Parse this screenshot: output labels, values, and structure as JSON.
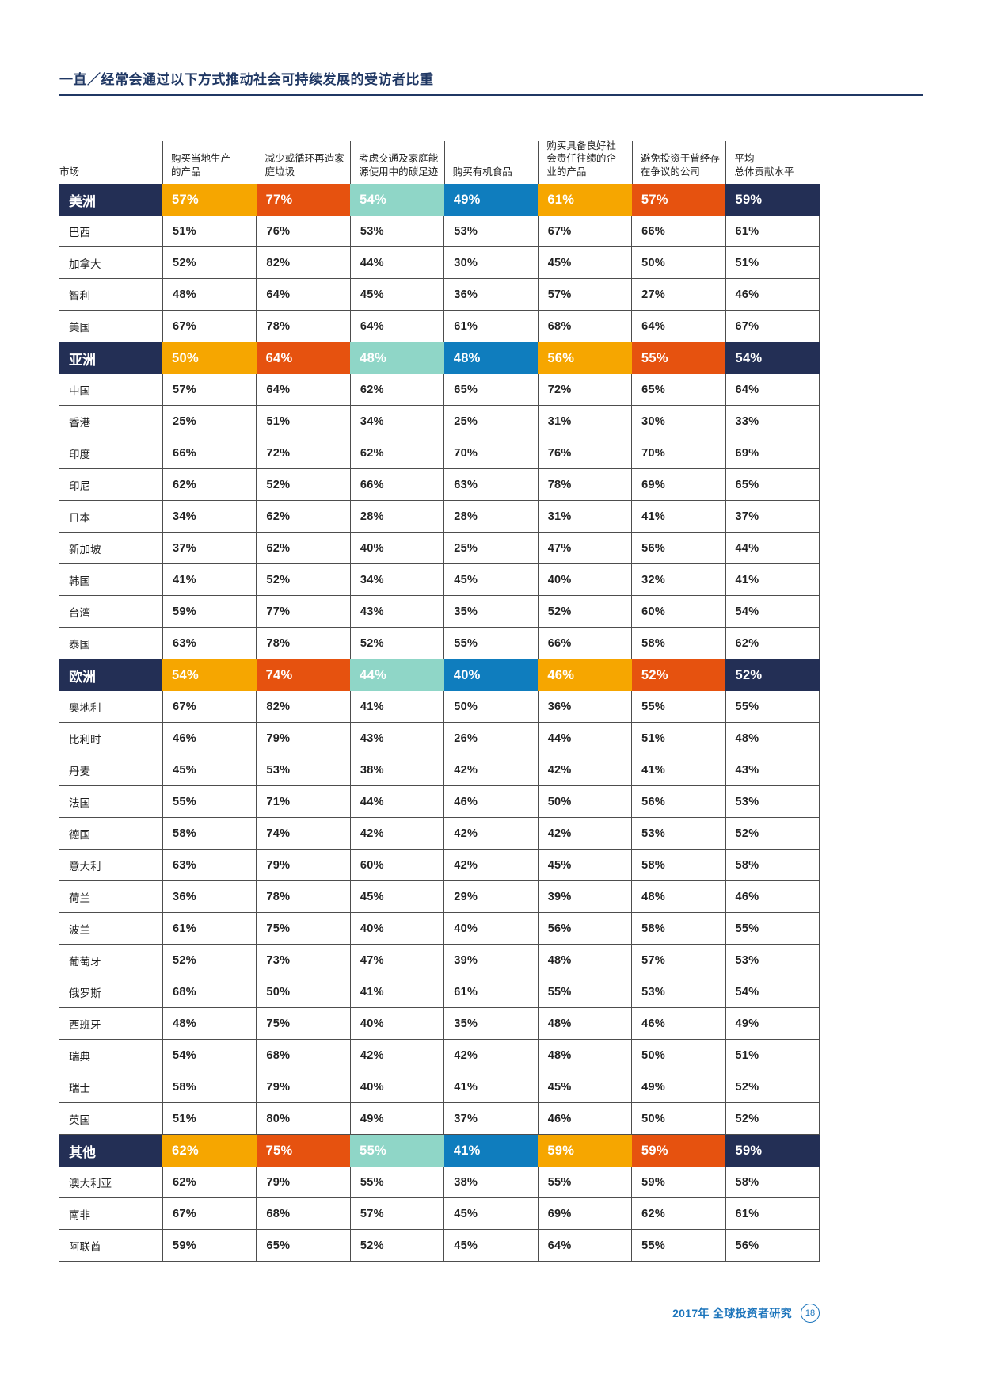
{
  "page": {
    "title": "一直／经常会通过以下方式推动社会可持续发展的受访者比重",
    "footer": {
      "text": "2017年 全球投资者研究",
      "page_number": "18"
    }
  },
  "colors": {
    "navy": "#232f55",
    "amber": "#f6a600",
    "orange": "#e6520f",
    "teal": "#8fd6c7",
    "blue": "#0f7dbe",
    "footer_blue": "#1c75bc"
  },
  "table": {
    "columns": [
      "市场",
      "购买当地生产\n的产品",
      "减少或循环再造家\n庭垃圾",
      "考虑交通及家庭能\n源使用中的碳足迹",
      "购买有机食品",
      "购买具备良好社\n会责任往绩的企\n业的产品",
      "避免投资于曾经存\n在争议的公司",
      "平均\n总体贡献水平"
    ],
    "value_colors": [
      "amber",
      "orange",
      "teal",
      "blue",
      "amber",
      "orange",
      "navy"
    ],
    "rows": [
      {
        "type": "region",
        "name": "美洲",
        "values": [
          "57%",
          "77%",
          "54%",
          "49%",
          "61%",
          "57%",
          "59%"
        ]
      },
      {
        "type": "country",
        "name": "巴西",
        "values": [
          "51%",
          "76%",
          "53%",
          "53%",
          "67%",
          "66%",
          "61%"
        ]
      },
      {
        "type": "country",
        "name": "加拿大",
        "values": [
          "52%",
          "82%",
          "44%",
          "30%",
          "45%",
          "50%",
          "51%"
        ]
      },
      {
        "type": "country",
        "name": "智利",
        "values": [
          "48%",
          "64%",
          "45%",
          "36%",
          "57%",
          "27%",
          "46%"
        ]
      },
      {
        "type": "country",
        "name": "美国",
        "values": [
          "67%",
          "78%",
          "64%",
          "61%",
          "68%",
          "64%",
          "67%"
        ]
      },
      {
        "type": "region",
        "name": "亚洲",
        "values": [
          "50%",
          "64%",
          "48%",
          "48%",
          "56%",
          "55%",
          "54%"
        ]
      },
      {
        "type": "country",
        "name": "中国",
        "values": [
          "57%",
          "64%",
          "62%",
          "65%",
          "72%",
          "65%",
          "64%"
        ]
      },
      {
        "type": "country",
        "name": "香港",
        "values": [
          "25%",
          "51%",
          "34%",
          "25%",
          "31%",
          "30%",
          "33%"
        ]
      },
      {
        "type": "country",
        "name": "印度",
        "values": [
          "66%",
          "72%",
          "62%",
          "70%",
          "76%",
          "70%",
          "69%"
        ]
      },
      {
        "type": "country",
        "name": "印尼",
        "values": [
          "62%",
          "52%",
          "66%",
          "63%",
          "78%",
          "69%",
          "65%"
        ]
      },
      {
        "type": "country",
        "name": "日本",
        "values": [
          "34%",
          "62%",
          "28%",
          "28%",
          "31%",
          "41%",
          "37%"
        ]
      },
      {
        "type": "country",
        "name": "新加坡",
        "values": [
          "37%",
          "62%",
          "40%",
          "25%",
          "47%",
          "56%",
          "44%"
        ]
      },
      {
        "type": "country",
        "name": "韩国",
        "values": [
          "41%",
          "52%",
          "34%",
          "45%",
          "40%",
          "32%",
          "41%"
        ]
      },
      {
        "type": "country",
        "name": "台湾",
        "values": [
          "59%",
          "77%",
          "43%",
          "35%",
          "52%",
          "60%",
          "54%"
        ]
      },
      {
        "type": "country",
        "name": "泰国",
        "values": [
          "63%",
          "78%",
          "52%",
          "55%",
          "66%",
          "58%",
          "62%"
        ]
      },
      {
        "type": "region",
        "name": "欧洲",
        "values": [
          "54%",
          "74%",
          "44%",
          "40%",
          "46%",
          "52%",
          "52%"
        ]
      },
      {
        "type": "country",
        "name": "奥地利",
        "values": [
          "67%",
          "82%",
          "41%",
          "50%",
          "36%",
          "55%",
          "55%"
        ]
      },
      {
        "type": "country",
        "name": "比利时",
        "values": [
          "46%",
          "79%",
          "43%",
          "26%",
          "44%",
          "51%",
          "48%"
        ]
      },
      {
        "type": "country",
        "name": "丹麦",
        "values": [
          "45%",
          "53%",
          "38%",
          "42%",
          "42%",
          "41%",
          "43%"
        ]
      },
      {
        "type": "country",
        "name": "法国",
        "values": [
          "55%",
          "71%",
          "44%",
          "46%",
          "50%",
          "56%",
          "53%"
        ]
      },
      {
        "type": "country",
        "name": "德国",
        "values": [
          "58%",
          "74%",
          "42%",
          "42%",
          "42%",
          "53%",
          "52%"
        ]
      },
      {
        "type": "country",
        "name": "意大利",
        "values": [
          "63%",
          "79%",
          "60%",
          "42%",
          "45%",
          "58%",
          "58%"
        ]
      },
      {
        "type": "country",
        "name": "荷兰",
        "values": [
          "36%",
          "78%",
          "45%",
          "29%",
          "39%",
          "48%",
          "46%"
        ]
      },
      {
        "type": "country",
        "name": "波兰",
        "values": [
          "61%",
          "75%",
          "40%",
          "40%",
          "56%",
          "58%",
          "55%"
        ]
      },
      {
        "type": "country",
        "name": "葡萄牙",
        "values": [
          "52%",
          "73%",
          "47%",
          "39%",
          "48%",
          "57%",
          "53%"
        ]
      },
      {
        "type": "country",
        "name": "俄罗斯",
        "values": [
          "68%",
          "50%",
          "41%",
          "61%",
          "55%",
          "53%",
          "54%"
        ]
      },
      {
        "type": "country",
        "name": "西班牙",
        "values": [
          "48%",
          "75%",
          "40%",
          "35%",
          "48%",
          "46%",
          "49%"
        ]
      },
      {
        "type": "country",
        "name": "瑞典",
        "values": [
          "54%",
          "68%",
          "42%",
          "42%",
          "48%",
          "50%",
          "51%"
        ]
      },
      {
        "type": "country",
        "name": "瑞士",
        "values": [
          "58%",
          "79%",
          "40%",
          "41%",
          "45%",
          "49%",
          "52%"
        ]
      },
      {
        "type": "country",
        "name": "英国",
        "values": [
          "51%",
          "80%",
          "49%",
          "37%",
          "46%",
          "50%",
          "52%"
        ]
      },
      {
        "type": "region",
        "name": "其他",
        "values": [
          "62%",
          "75%",
          "55%",
          "41%",
          "59%",
          "59%",
          "59%"
        ]
      },
      {
        "type": "country",
        "name": "澳大利亚",
        "values": [
          "62%",
          "79%",
          "55%",
          "38%",
          "55%",
          "59%",
          "58%"
        ]
      },
      {
        "type": "country",
        "name": "南非",
        "values": [
          "67%",
          "68%",
          "57%",
          "45%",
          "69%",
          "62%",
          "61%"
        ]
      },
      {
        "type": "country",
        "name": "阿联酋",
        "values": [
          "59%",
          "65%",
          "52%",
          "45%",
          "64%",
          "55%",
          "56%"
        ]
      }
    ]
  }
}
